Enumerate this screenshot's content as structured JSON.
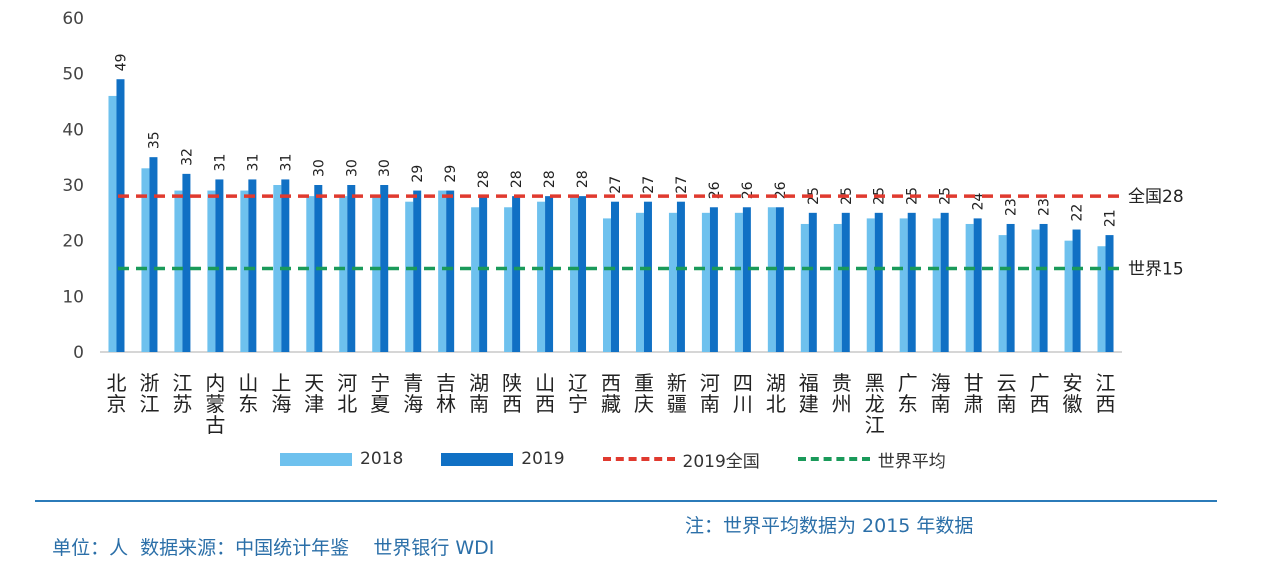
{
  "chart_data": {
    "type": "bar",
    "categories": [
      "北京",
      "浙江",
      "江苏",
      "内蒙古",
      "山东",
      "上海",
      "天津",
      "河北",
      "宁夏",
      "青海",
      "吉林",
      "湖南",
      "陕西",
      "山西",
      "辽宁",
      "西藏",
      "重庆",
      "新疆",
      "河南",
      "四川",
      "湖北",
      "福建",
      "贵州",
      "黑龙江",
      "广东",
      "海南",
      "甘肃",
      "云南",
      "广西",
      "安徽",
      "江西"
    ],
    "series": [
      {
        "name": "2018",
        "color": "#6ec1ee",
        "values": [
          46,
          33,
          29,
          29,
          29,
          30,
          28,
          28,
          28,
          27,
          29,
          26,
          26,
          27,
          28,
          24,
          25,
          25,
          25,
          25,
          26,
          23,
          23,
          24,
          24,
          24,
          23,
          21,
          22,
          20,
          19
        ]
      },
      {
        "name": "2019",
        "color": "#1070c4",
        "values": [
          49,
          35,
          32,
          31,
          31,
          31,
          30,
          30,
          30,
          29,
          29,
          28,
          28,
          28,
          28,
          27,
          27,
          27,
          26,
          26,
          26,
          25,
          25,
          25,
          25,
          25,
          24,
          23,
          23,
          22,
          21
        ]
      }
    ],
    "reference_lines": [
      {
        "name": "2019全国",
        "value": 28,
        "color": "#e03a2f",
        "label": "全国28"
      },
      {
        "name": "世界平均",
        "value": 15,
        "color": "#1a9a5a",
        "label": "世界15"
      }
    ],
    "ylim": [
      0,
      60
    ],
    "yticks": [
      0,
      10,
      20,
      30,
      40,
      50,
      60
    ],
    "grid": false,
    "legend_position": "bottom"
  },
  "legend": {
    "s2018": "2018",
    "s2019": "2019",
    "national": "2019全国",
    "world": "世界平均"
  },
  "footer": {
    "source": "单位：人  数据来源：中国统计年鉴    世界银行 WDI",
    "note": "注：世界平均数据为 2015 年数据"
  }
}
